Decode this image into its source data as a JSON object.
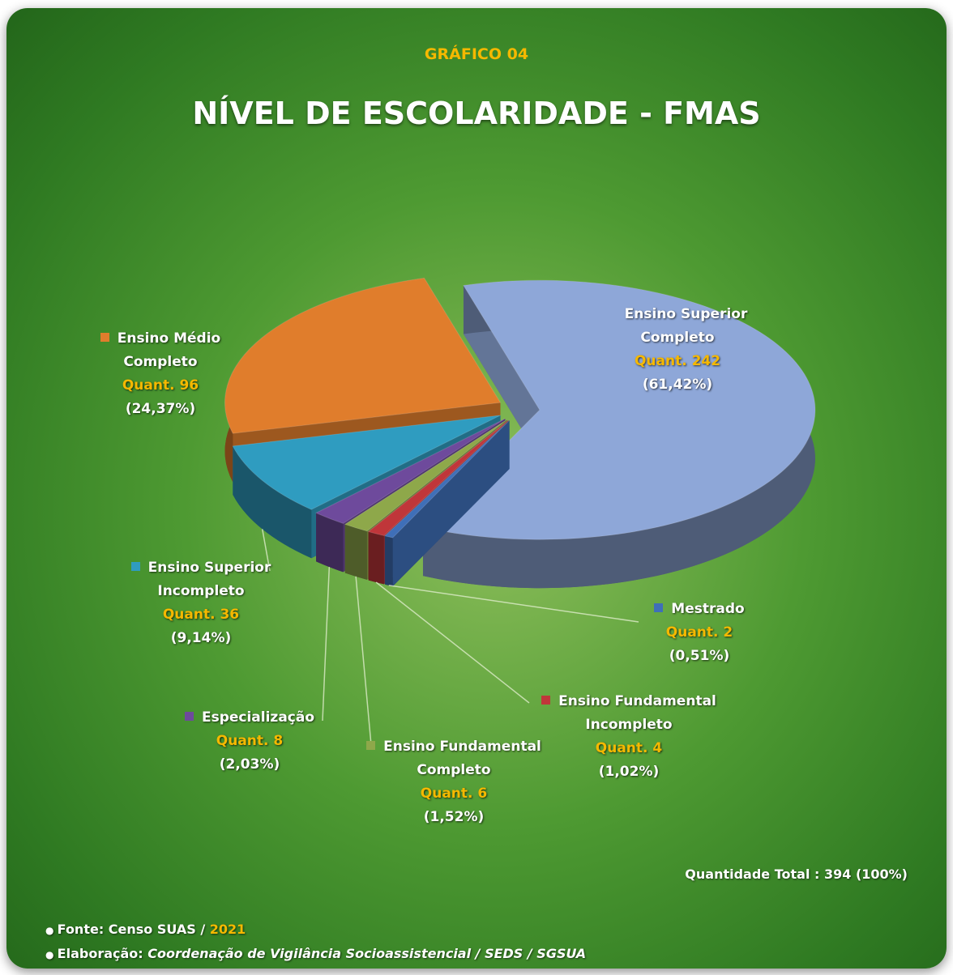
{
  "chart_data": {
    "type": "pie3d",
    "kicker": "GRÁFICO 04",
    "title": "NÍVEL DE ESCOLARIDADE - FMAS",
    "categories": [
      "Ensino Superior Completo",
      "Mestrado",
      "Ensino Fundamental Incompleto",
      "Ensino Fundamental Completo",
      "Especialização",
      "Ensino Superior Incompleto",
      "Ensino Médio Completo"
    ],
    "values": [
      61.42,
      0.51,
      1.02,
      1.52,
      2.03,
      9.14,
      24.37
    ],
    "value_labels": [
      "(61,42%)",
      "(0,51%)",
      "(1,02%)",
      "(1,52%)",
      "(2,03%)",
      "(9,14%)",
      "(24,37%)"
    ],
    "quantities": [
      242,
      2,
      4,
      6,
      8,
      36,
      96
    ],
    "quantity_labels": [
      "Quant. 242",
      "Quant. 2",
      "Quant. 4",
      "Quant. 6",
      "Quant. 8",
      "Quant. 36",
      "Quant. 96"
    ],
    "colors": [
      "#8ea7d8",
      "#3f6fb8",
      "#c0363a",
      "#8ea84a",
      "#6e4a9c",
      "#2f9cc0",
      "#e07d2c"
    ],
    "total_note": "Quantidade Total : 394 (100%)",
    "source_label": "Fonte: Censo SUAS /",
    "source_year": "2021",
    "credit_label": "Elaboração:",
    "credit": "Coordenação de Vigilância Socioassistencial / SEDS / SGSUA"
  }
}
